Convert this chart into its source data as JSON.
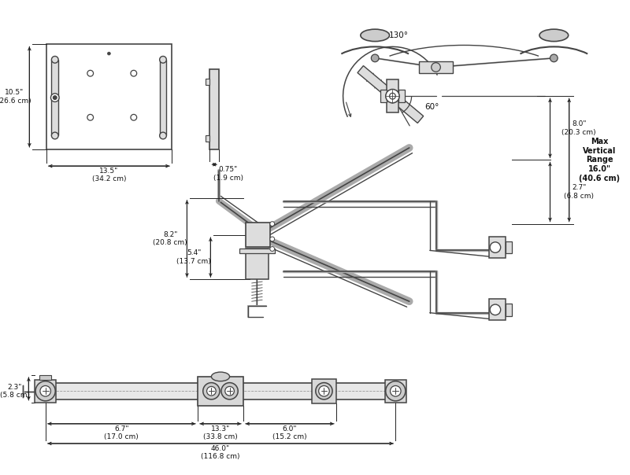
{
  "bg_color": "#ffffff",
  "line_color": "#444444",
  "dim_color": "#222222",
  "text_color": "#111111",
  "figsize": [
    8.0,
    6.04
  ],
  "dpi": 100,
  "label_h": "10.5\"\n(26.6 cm)",
  "label_w": "13.5\"\n(34.2 cm)",
  "label_wm": "0.75\"\n(1.9 cm)",
  "label_130": "130°",
  "label_60": "60°",
  "label_max_vert": "Max\nVertical\nRange\n16.0\"\n(40.6 cm)",
  "label_8": "8.0\"\n(20.3 cm)",
  "label_27": "2.7\"\n(6.8 cm)",
  "label_82": "8.2\"\n(20.8 cm)",
  "label_54": "5.4\"\n(13.7 cm)",
  "label_67": "6.7\"\n(17.0 cm)",
  "label_133": "13.3\"\n(33.8 cm)",
  "label_60b": "6.0\"\n(15.2 cm)",
  "label_46": "46.0\"\n(116.8 cm)",
  "label_23": "2.3\"\n(5.8 cm)"
}
